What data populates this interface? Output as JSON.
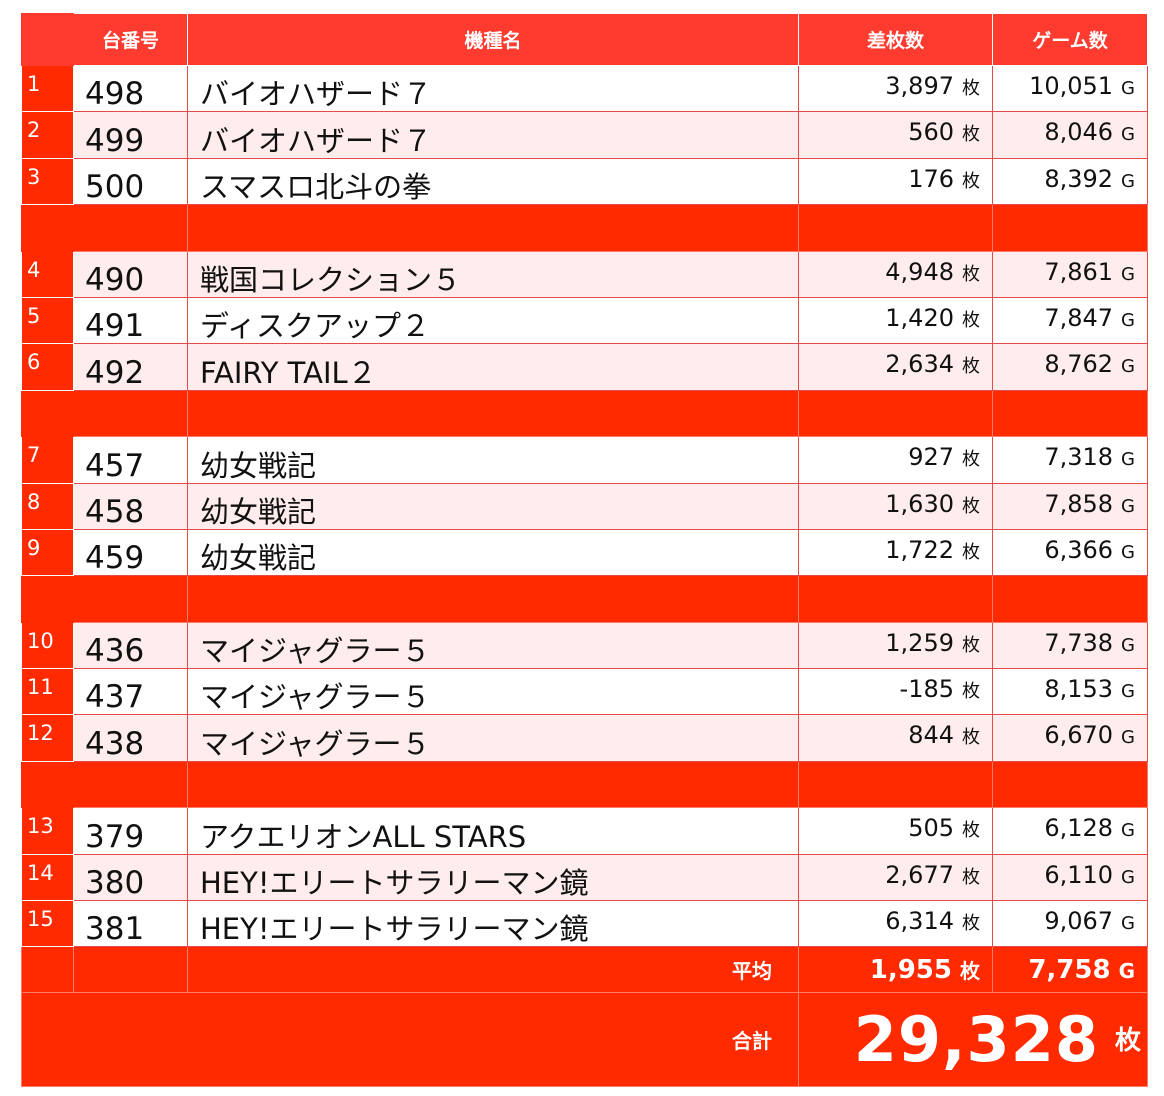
{
  "header": {
    "no": "台番号",
    "name": "機種名",
    "diff": "差枚数",
    "games": "ゲーム数"
  },
  "units": {
    "medals": "枚",
    "games": "G"
  },
  "groups": [
    {
      "rows": [
        {
          "idx": "1",
          "no": "498",
          "name": "バイオハザード７",
          "diff": "3,897",
          "games": "10,051"
        },
        {
          "idx": "2",
          "no": "499",
          "name": "バイオハザード７",
          "diff": "560",
          "games": "8,046"
        },
        {
          "idx": "3",
          "no": "500",
          "name": "スマスロ北斗の拳",
          "diff": "176",
          "games": "8,392"
        }
      ]
    },
    {
      "rows": [
        {
          "idx": "4",
          "no": "490",
          "name": "戦国コレクション５",
          "diff": "4,948",
          "games": "7,861"
        },
        {
          "idx": "5",
          "no": "491",
          "name": "ディスクアップ２",
          "diff": "1,420",
          "games": "7,847"
        },
        {
          "idx": "6",
          "no": "492",
          "name": "FAIRY TAIL２",
          "diff": "2,634",
          "games": "8,762"
        }
      ]
    },
    {
      "rows": [
        {
          "idx": "7",
          "no": "457",
          "name": "幼女戦記",
          "diff": "927",
          "games": "7,318"
        },
        {
          "idx": "8",
          "no": "458",
          "name": "幼女戦記",
          "diff": "1,630",
          "games": "7,858"
        },
        {
          "idx": "9",
          "no": "459",
          "name": "幼女戦記",
          "diff": "1,722",
          "games": "6,366"
        }
      ]
    },
    {
      "rows": [
        {
          "idx": "10",
          "no": "436",
          "name": "マイジャグラー５",
          "diff": "1,259",
          "games": "7,738"
        },
        {
          "idx": "11",
          "no": "437",
          "name": "マイジャグラー５",
          "diff": "-185",
          "games": "8,153"
        },
        {
          "idx": "12",
          "no": "438",
          "name": "マイジャグラー５",
          "diff": "844",
          "games": "6,670"
        }
      ]
    },
    {
      "rows": [
        {
          "idx": "13",
          "no": "379",
          "name": "アクエリオンALL STARS",
          "diff": "505",
          "games": "6,128"
        },
        {
          "idx": "14",
          "no": "380",
          "name": "HEY!エリートサラリーマン鏡",
          "diff": "2,677",
          "games": "6,110"
        },
        {
          "idx": "15",
          "no": "381",
          "name": "HEY!エリートサラリーマン鏡",
          "diff": "6,314",
          "games": "9,067"
        }
      ]
    }
  ],
  "average": {
    "label": "平均",
    "diff": "1,955",
    "games": "7,758"
  },
  "total": {
    "label": "合計",
    "diff": "29,328"
  },
  "colors": {
    "accent": "#ff2a00",
    "header": "#ff3b30",
    "row_alt": "#ffeded",
    "border": "#e84a4a"
  }
}
